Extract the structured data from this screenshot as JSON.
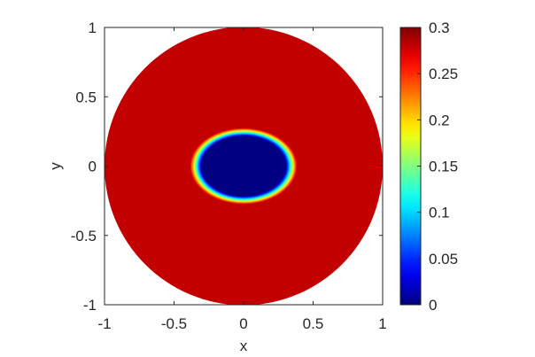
{
  "chart_data": {
    "type": "heatmap",
    "title": "",
    "xlabel": "x",
    "ylabel": "y",
    "xlim": [
      -1,
      1
    ],
    "ylim": [
      -1,
      1
    ],
    "x_ticks": [
      -1,
      -0.5,
      0,
      0.5,
      1
    ],
    "y_ticks": [
      -1,
      -0.5,
      0,
      0.5,
      1
    ],
    "x_tick_labels": [
      "-1",
      "-0.5",
      "0",
      "0.5",
      "1"
    ],
    "y_tick_labels": [
      "-1",
      "-0.5",
      "0",
      "0.5",
      "1"
    ],
    "colormap": "jet",
    "clim": [
      0,
      0.3
    ],
    "colorbar_ticks": [
      0,
      0.05,
      0.1,
      0.15,
      0.2,
      0.25,
      0.3
    ],
    "colorbar_tick_labels": [
      "0",
      "0.05",
      "0.1",
      "0.15",
      "0.2",
      "0.25",
      "0.3"
    ],
    "background_color": "#ffffff",
    "grid": false,
    "domain": {
      "shape": "disk",
      "center": [
        0,
        0
      ],
      "radius": 1,
      "value": 0.28
    },
    "inclusion": {
      "shape": "ellipse",
      "center": [
        0,
        0
      ],
      "semi_axis_x": 0.35,
      "semi_axis_y": 0.25,
      "value": 0
    }
  }
}
